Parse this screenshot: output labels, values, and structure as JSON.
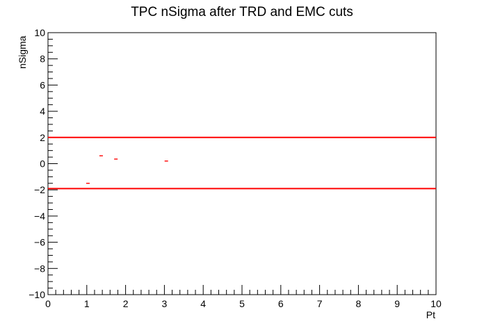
{
  "chart_data": {
    "type": "scatter",
    "title": "TPC nSigma after TRD and EMC cuts",
    "xlabel": "Pt",
    "ylabel": "nSigma",
    "xlim": [
      0,
      10
    ],
    "ylim": [
      -10,
      10
    ],
    "x_ticks": [
      0,
      1,
      2,
      3,
      4,
      5,
      6,
      7,
      8,
      9,
      10
    ],
    "y_ticks": [
      -10,
      -8,
      -6,
      -4,
      -2,
      0,
      2,
      4,
      6,
      8,
      10
    ],
    "x_tick_labels": [
      "0",
      "1",
      "2",
      "3",
      "4",
      "5",
      "6",
      "7",
      "8",
      "9",
      "10"
    ],
    "y_tick_labels": [
      "−10",
      "−8",
      "−6",
      "−4",
      "−2",
      "0",
      "2",
      "4",
      "6",
      "8",
      "10"
    ],
    "grid": false,
    "legend": "none",
    "points_color": "#ff0000",
    "cut_line_color": "#ff0000",
    "points": [
      {
        "x": 1.03,
        "y": -1.5
      },
      {
        "x": 1.37,
        "y": 0.6
      },
      {
        "x": 1.75,
        "y": 0.35
      },
      {
        "x": 3.05,
        "y": 0.2
      }
    ],
    "hlines": [
      2,
      -1.9
    ]
  }
}
